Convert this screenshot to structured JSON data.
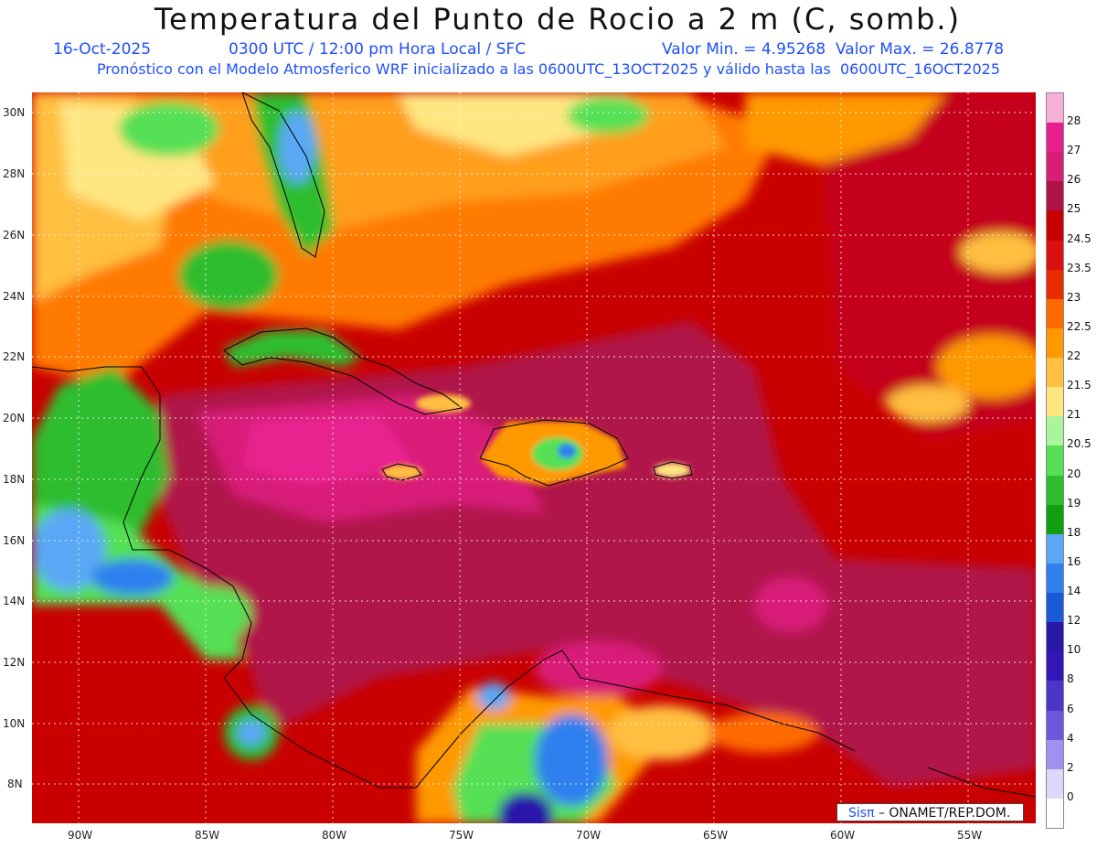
{
  "header": {
    "title": "Temperatura del Punto de Rocio a 2 m (C, somb.)",
    "date": "16-Oct-2025",
    "time": "0300 UTC / 12:00 pm Hora Local / SFC",
    "min_max": "Valor Min. = 4.95268  Valor Max. = 26.8778",
    "model_info": "Pronóstico con el Modelo Atmosferico WRF inicializado a las 0600UTC_13OCT2025 y válido hasta las  0600UTC_16OCT2025"
  },
  "axes": {
    "lat_labels": [
      "30N",
      "28N",
      "26N",
      "24N",
      "22N",
      "20N",
      "18N",
      "16N",
      "14N",
      "12N",
      "10N",
      "8N"
    ],
    "lon_labels": [
      "90W",
      "85W",
      "80W",
      "75W",
      "70W",
      "65W",
      "60W",
      "55W"
    ]
  },
  "legend": {
    "labels": [
      "28",
      "27",
      "26",
      "25",
      "24.5",
      "23.5",
      "23",
      "22.5",
      "22",
      "21.5",
      "21",
      "20.5",
      "20",
      "19",
      "18",
      "16",
      "14",
      "12",
      "10",
      "8",
      "6",
      "4",
      "2",
      "0"
    ],
    "colors": [
      "#f7b0d8",
      "#e8208f",
      "#d81f78",
      "#b0124a",
      "#c90000",
      "#db1111",
      "#ea2b00",
      "#ff6a00",
      "#ff9900",
      "#ffbf40",
      "#ffe680",
      "#a9f59a",
      "#55e055",
      "#2ebd2e",
      "#109f10",
      "#5aa8f5",
      "#2f80ee",
      "#1a5ad6",
      "#2a18a8",
      "#3416b8",
      "#4a36c8",
      "#6b58dc",
      "#a090f0",
      "#dcd8fa",
      "#ffffff"
    ]
  },
  "credit": {
    "brand": "Sisπ",
    "text": " – ONAMET/REP.DOM."
  },
  "colors": {
    "title_text": "#111111",
    "subtitle_text": "#1f4fff",
    "gridline": "#ffffff"
  }
}
